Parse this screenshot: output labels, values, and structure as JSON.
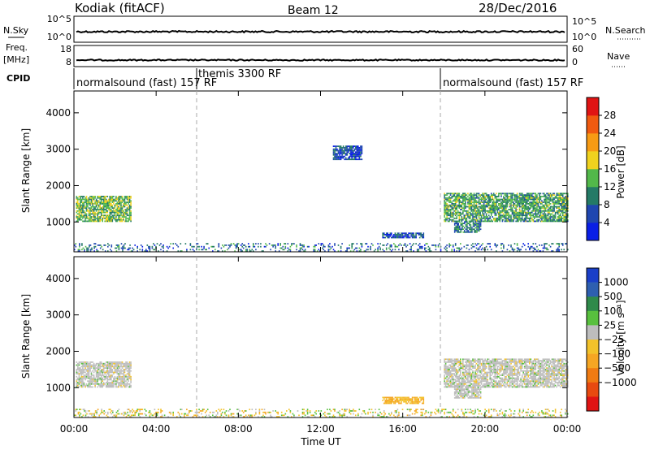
{
  "header": {
    "station": "Kodiak (fitACF)",
    "beam": "Beam 12",
    "date": "28/Dec/2016"
  },
  "panels": {
    "nsky": {
      "label": "N.Sky",
      "ticks": [
        "10^5",
        "10^0"
      ],
      "right_label": "N.Search",
      "right_ticks": [
        "10^5",
        "10^0"
      ]
    },
    "freq": {
      "label_line1": "Freq.",
      "label_line2": "[MHz]",
      "ticks": [
        "18",
        "8"
      ],
      "right_label": "Nave",
      "right_ticks": [
        "60",
        "0"
      ]
    },
    "cpid": {
      "label": "CPID",
      "segments": [
        {
          "text": "normalsound (fast) 157 RF"
        },
        {
          "text": "themis 3300 RF"
        },
        {
          "text": "normalsound (fast) 157 RF"
        }
      ]
    }
  },
  "axes": {
    "ylabel": "Slant Range [km]",
    "xlabel": "Time UT",
    "x_ticks": [
      "00:00",
      "04:00",
      "08:00",
      "12:00",
      "16:00",
      "20:00",
      "00:00"
    ],
    "y_ticks": [
      "1000",
      "2000",
      "3000",
      "4000"
    ]
  },
  "colorbars": {
    "power": {
      "label": "Power [dB]",
      "tick_labels": [
        "4",
        "8",
        "12",
        "16",
        "20",
        "24",
        "28"
      ],
      "colors": [
        "#0a1fe6",
        "#1f46b0",
        "#247a66",
        "#52b84a",
        "#f0d21e",
        "#f79b14",
        "#f05a10",
        "#e01414"
      ]
    },
    "velocity": {
      "label": "Velocity [m s⁻¹]",
      "tick_labels": [
        "1000",
        "500",
        "100",
        "25",
        "−25",
        "−100",
        "−500",
        "−1000"
      ],
      "colors": [
        "#1a3fc8",
        "#2e5fb0",
        "#2f8a4a",
        "#58c03e",
        "#bdbdbd",
        "#f2c22a",
        "#f5a623",
        "#f07b12",
        "#e84a10",
        "#e01414"
      ]
    }
  },
  "chart_data": [
    {
      "type": "heatmap",
      "title": "Power",
      "xlabel": "Time UT",
      "ylabel": "Slant Range [km]",
      "xlim": [
        0,
        24
      ],
      "ylim": [
        180,
        4600
      ],
      "colorbar_label": "Power [dB]",
      "cpid_boundaries_hours": [
        6.0,
        18.0
      ],
      "regions": [
        {
          "t0": 0.1,
          "t1": 2.8,
          "r0": 1000,
          "r1": 1700,
          "value_db": 14
        },
        {
          "t0": 18.0,
          "t1": 24.0,
          "r0": 1000,
          "r1": 1800,
          "value_db": 12
        },
        {
          "t0": 18.5,
          "t1": 19.8,
          "r0": 700,
          "r1": 1000,
          "value_db": 10
        },
        {
          "t0": 15.0,
          "t1": 17.0,
          "r0": 550,
          "r1": 700,
          "value_db": 6
        },
        {
          "t0": 12.6,
          "t1": 14.0,
          "r0": 2700,
          "r1": 3100,
          "value_db": 6
        },
        {
          "t0": 0.0,
          "t1": 24.0,
          "r0": 180,
          "r1": 400,
          "value_db": 8
        }
      ]
    },
    {
      "type": "heatmap",
      "title": "Velocity",
      "xlabel": "Time UT",
      "ylabel": "Slant Range [km]",
      "xlim": [
        0,
        24
      ],
      "ylim": [
        180,
        4600
      ],
      "colorbar_label": "Velocity [m s⁻¹]",
      "cpid_boundaries_hours": [
        6.0,
        18.0
      ],
      "regions": [
        {
          "t0": 0.1,
          "t1": 2.8,
          "r0": 1000,
          "r1": 1700,
          "velocity": 0
        },
        {
          "t0": 18.0,
          "t1": 24.0,
          "r0": 1000,
          "r1": 1800,
          "velocity": 0
        },
        {
          "t0": 18.5,
          "t1": 19.8,
          "r0": 700,
          "r1": 1000,
          "velocity": 0
        },
        {
          "t0": 15.0,
          "t1": 17.0,
          "r0": 550,
          "r1": 750,
          "velocity": -100
        },
        {
          "t0": 0.0,
          "t1": 24.0,
          "r0": 180,
          "r1": 400,
          "velocity": -50
        }
      ]
    }
  ]
}
